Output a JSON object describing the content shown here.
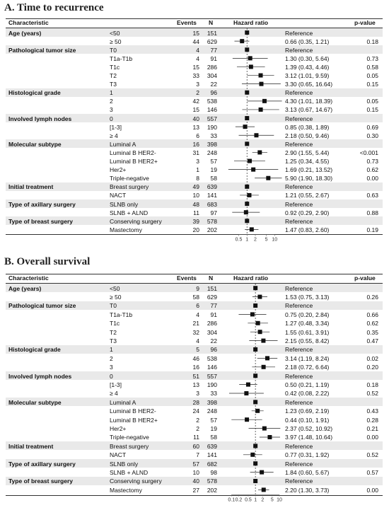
{
  "panels": [
    {
      "title": "A. Time to recurrence",
      "headers": {
        "characteristic": "Characteristic",
        "events": "Events",
        "n": "N",
        "hazard": "Hazard ratio",
        "pvalue": "p-value"
      },
      "axis_ticks": [
        "0.5",
        "1",
        "2",
        "5",
        "10"
      ],
      "rows": [
        {
          "char": "Age (years)",
          "level": "<50",
          "events": "15",
          "n": "151",
          "hr_text": "Reference",
          "p": ""
        },
        {
          "char": "",
          "level": "≥ 50",
          "events": "44",
          "n": "629",
          "hr_text": "0.66 (0.35, 1.21)",
          "p": "0.18"
        },
        {
          "char": "Pathological tumor size",
          "level": "T0",
          "events": "4",
          "n": "77",
          "hr_text": "Reference",
          "p": ""
        },
        {
          "char": "",
          "level": "T1a-T1b",
          "events": "4",
          "n": "91",
          "hr_text": "1.30 (0.30, 5.64)",
          "p": "0.73"
        },
        {
          "char": "",
          "level": "T1c",
          "events": "15",
          "n": "286",
          "hr_text": "1.39 (0.43, 4.46)",
          "p": "0.58"
        },
        {
          "char": "",
          "level": "T2",
          "events": "33",
          "n": "304",
          "hr_text": "3.12 (1.01, 9.59)",
          "p": "0.05"
        },
        {
          "char": "",
          "level": "T3",
          "events": "3",
          "n": "22",
          "hr_text": "3.30 (0.65, 16.64)",
          "p": "0.15"
        },
        {
          "char": "Histological grade",
          "level": "1",
          "events": "2",
          "n": "96",
          "hr_text": "Reference",
          "p": ""
        },
        {
          "char": "",
          "level": "2",
          "events": "42",
          "n": "538",
          "hr_text": "4.30 (1.01, 18.39)",
          "p": "0.05"
        },
        {
          "char": "",
          "level": "3",
          "events": "15",
          "n": "146",
          "hr_text": "3.13 (0.67, 14.67)",
          "p": "0.15"
        },
        {
          "char": "Involved lymph nodes",
          "level": "0",
          "events": "40",
          "n": "557",
          "hr_text": "Reference",
          "p": ""
        },
        {
          "char": "",
          "level": "[1-3]",
          "events": "13",
          "n": "190",
          "hr_text": "0.85 (0.38, 1.89)",
          "p": "0.69"
        },
        {
          "char": "",
          "level": "≥ 4",
          "events": "6",
          "n": "33",
          "hr_text": "2.18 (0.50, 9.46)",
          "p": "0.30"
        },
        {
          "char": "Molecular subtype",
          "level": "Luminal A",
          "events": "16",
          "n": "398",
          "hr_text": "Reference",
          "p": ""
        },
        {
          "char": "",
          "level": "Luminal B HER2-",
          "events": "31",
          "n": "248",
          "hr_text": "2.90 (1.55, 5.44)",
          "p": "<0.001"
        },
        {
          "char": "",
          "level": "Luminal B HER2+",
          "events": "3",
          "n": "57",
          "hr_text": "1.25 (0.34, 4.55)",
          "p": "0.73"
        },
        {
          "char": "",
          "level": "Her2+",
          "events": "1",
          "n": "19",
          "hr_text": "1.69 (0.21, 13.52)",
          "p": "0.62"
        },
        {
          "char": "",
          "level": "Triple-negative",
          "events": "8",
          "n": "58",
          "hr_text": "5.90 (1.90, 18.30)",
          "p": "0.00"
        },
        {
          "char": "Initial treatment",
          "level": "Breast surgery",
          "events": "49",
          "n": "639",
          "hr_text": "Reference",
          "p": ""
        },
        {
          "char": "",
          "level": "NACT",
          "events": "10",
          "n": "141",
          "hr_text": "1.21 (0.55, 2.67)",
          "p": "0.63"
        },
        {
          "char": "Type of axillary surgery",
          "level": "SLNB only",
          "events": "48",
          "n": "683",
          "hr_text": "Reference",
          "p": ""
        },
        {
          "char": "",
          "level": "SLNB + ALND",
          "events": "11",
          "n": "97",
          "hr_text": "0.92 (0.29, 2.90)",
          "p": "0.88"
        },
        {
          "char": "Type of breast surgery",
          "level": "Conserving surgery",
          "events": "39",
          "n": "578",
          "hr_text": "Reference",
          "p": ""
        },
        {
          "char": "",
          "level": "Mastectomy",
          "events": "20",
          "n": "202",
          "hr_text": "1.47 (0.83, 2.60)",
          "p": "0.19"
        }
      ]
    },
    {
      "title": "B. Overall survival",
      "headers": {
        "characteristic": "Characteristic",
        "events": "Events",
        "n": "N",
        "hazard": "Hazard ratio",
        "pvalue": "p-value"
      },
      "axis_ticks": [
        "0.1",
        "0.2",
        "0.5",
        "1",
        "2",
        "5",
        "10"
      ],
      "rows": [
        {
          "char": "Age (years)",
          "level": "<50",
          "events": "9",
          "n": "151",
          "hr_text": "Reference",
          "p": ""
        },
        {
          "char": "",
          "level": "≥ 50",
          "events": "58",
          "n": "629",
          "hr_text": "1.53 (0.75, 3.13)",
          "p": "0.26"
        },
        {
          "char": "Pathological tumor size",
          "level": "T0",
          "events": "6",
          "n": "77",
          "hr_text": "Reference",
          "p": ""
        },
        {
          "char": "",
          "level": "T1a-T1b",
          "events": "4",
          "n": "91",
          "hr_text": "0.75 (0.20, 2.84)",
          "p": "0.66"
        },
        {
          "char": "",
          "level": "T1c",
          "events": "21",
          "n": "286",
          "hr_text": "1.27 (0.48, 3.34)",
          "p": "0.62"
        },
        {
          "char": "",
          "level": "T2",
          "events": "32",
          "n": "304",
          "hr_text": "1.55 (0.61, 3.91)",
          "p": "0.35"
        },
        {
          "char": "",
          "level": "T3",
          "events": "4",
          "n": "22",
          "hr_text": "2.15 (0.55, 8.42)",
          "p": "0.47"
        },
        {
          "char": "Histological grade",
          "level": "1",
          "events": "5",
          "n": "96",
          "hr_text": "Reference",
          "p": ""
        },
        {
          "char": "",
          "level": "2",
          "events": "46",
          "n": "538",
          "hr_text": "3.14 (1.19, 8.24)",
          "p": "0.02"
        },
        {
          "char": "",
          "level": "3",
          "events": "16",
          "n": "146",
          "hr_text": "2.18 (0.72, 6.64)",
          "p": "0.20"
        },
        {
          "char": "Involved lymph nodes",
          "level": "0",
          "events": "51",
          "n": "557",
          "hr_text": "Reference",
          "p": ""
        },
        {
          "char": "",
          "level": "[1-3]",
          "events": "13",
          "n": "190",
          "hr_text": "0.50 (0.21, 1.19)",
          "p": "0.18"
        },
        {
          "char": "",
          "level": "≥ 4",
          "events": "3",
          "n": "33",
          "hr_text": "0.42 (0.08, 2.22)",
          "p": "0.52"
        },
        {
          "char": "Molecular subtype",
          "level": "Luminal A",
          "events": "28",
          "n": "398",
          "hr_text": "Reference",
          "p": ""
        },
        {
          "char": "",
          "level": "Luminal B HER2-",
          "events": "24",
          "n": "248",
          "hr_text": "1.23 (0.69, 2.19)",
          "p": "0.43"
        },
        {
          "char": "",
          "level": "Luminal B HER2+",
          "events": "2",
          "n": "57",
          "hr_text": "0.44 (0.10, 1.91)",
          "p": "0.28"
        },
        {
          "char": "",
          "level": "Her2+",
          "events": "2",
          "n": "19",
          "hr_text": "2.37 (0.52, 10.92)",
          "p": "0.21"
        },
        {
          "char": "",
          "level": "Triple-negative",
          "events": "11",
          "n": "58",
          "hr_text": "3.97 (1.48, 10.64)",
          "p": "0.00"
        },
        {
          "char": "Initial treatment",
          "level": "Breast surgery",
          "events": "60",
          "n": "639",
          "hr_text": "Reference",
          "p": ""
        },
        {
          "char": "",
          "level": "NACT",
          "events": "7",
          "n": "141",
          "hr_text": "0.77 (0.31, 1.92)",
          "p": "0.52"
        },
        {
          "char": "Type of axillary surgery",
          "level": "SLNB only",
          "events": "57",
          "n": "682",
          "hr_text": "Reference",
          "p": ""
        },
        {
          "char": "",
          "level": "SLNB + ALND",
          "events": "10",
          "n": "98",
          "hr_text": "1.84 (0.60, 5.67)",
          "p": "0.57"
        },
        {
          "char": "Type of breast surgery",
          "level": "Conserving surgery",
          "events": "40",
          "n": "578",
          "hr_text": "Reference",
          "p": ""
        },
        {
          "char": "",
          "level": "Mastectomy",
          "events": "27",
          "n": "202",
          "hr_text": "2.20 (1.30, 3.73)",
          "p": "0.00"
        }
      ]
    }
  ],
  "chart_data": [
    {
      "type": "forest",
      "title": "A. Time to recurrence",
      "xlabel": "Hazard ratio",
      "xscale": "log",
      "xlim": [
        0.2,
        20
      ],
      "ticks": [
        0.5,
        1,
        2,
        5,
        10
      ],
      "reference_line": 1,
      "points": [
        {
          "label": "≥ 50",
          "hr": 0.66,
          "lo": 0.35,
          "hi": 1.21
        },
        {
          "label": "T1a-T1b",
          "hr": 1.3,
          "lo": 0.3,
          "hi": 5.64
        },
        {
          "label": "T1c",
          "hr": 1.39,
          "lo": 0.43,
          "hi": 4.46
        },
        {
          "label": "T2",
          "hr": 3.12,
          "lo": 1.01,
          "hi": 9.59
        },
        {
          "label": "T3",
          "hr": 3.3,
          "lo": 0.65,
          "hi": 16.64
        },
        {
          "label": "2",
          "hr": 4.3,
          "lo": 1.01,
          "hi": 18.39
        },
        {
          "label": "3",
          "hr": 3.13,
          "lo": 0.67,
          "hi": 14.67
        },
        {
          "label": "[1-3]",
          "hr": 0.85,
          "lo": 0.38,
          "hi": 1.89
        },
        {
          "label": "≥ 4",
          "hr": 2.18,
          "lo": 0.5,
          "hi": 9.46
        },
        {
          "label": "Luminal B HER2-",
          "hr": 2.9,
          "lo": 1.55,
          "hi": 5.44
        },
        {
          "label": "Luminal B HER2+",
          "hr": 1.25,
          "lo": 0.34,
          "hi": 4.55
        },
        {
          "label": "Her2+",
          "hr": 1.69,
          "lo": 0.21,
          "hi": 13.52
        },
        {
          "label": "Triple-negative",
          "hr": 5.9,
          "lo": 1.9,
          "hi": 18.3
        },
        {
          "label": "NACT",
          "hr": 1.21,
          "lo": 0.55,
          "hi": 2.67
        },
        {
          "label": "SLNB + ALND",
          "hr": 0.92,
          "lo": 0.29,
          "hi": 2.9
        },
        {
          "label": "Mastectomy",
          "hr": 1.47,
          "lo": 0.83,
          "hi": 2.6
        }
      ]
    },
    {
      "type": "forest",
      "title": "B. Overall survival",
      "xlabel": "Hazard ratio",
      "xscale": "log",
      "xlim": [
        0.07,
        14
      ],
      "ticks": [
        0.1,
        0.2,
        0.5,
        1,
        2,
        5,
        10
      ],
      "reference_line": 1,
      "points": [
        {
          "label": "≥ 50",
          "hr": 1.53,
          "lo": 0.75,
          "hi": 3.13
        },
        {
          "label": "T1a-T1b",
          "hr": 0.75,
          "lo": 0.2,
          "hi": 2.84
        },
        {
          "label": "T1c",
          "hr": 1.27,
          "lo": 0.48,
          "hi": 3.34
        },
        {
          "label": "T2",
          "hr": 1.55,
          "lo": 0.61,
          "hi": 3.91
        },
        {
          "label": "T3",
          "hr": 2.15,
          "lo": 0.55,
          "hi": 8.42
        },
        {
          "label": "2",
          "hr": 3.14,
          "lo": 1.19,
          "hi": 8.24
        },
        {
          "label": "3",
          "hr": 2.18,
          "lo": 0.72,
          "hi": 6.64
        },
        {
          "label": "[1-3]",
          "hr": 0.5,
          "lo": 0.21,
          "hi": 1.19
        },
        {
          "label": "≥ 4",
          "hr": 0.42,
          "lo": 0.08,
          "hi": 2.22
        },
        {
          "label": "Luminal B HER2-",
          "hr": 1.23,
          "lo": 0.69,
          "hi": 2.19
        },
        {
          "label": "Luminal B HER2+",
          "hr": 0.44,
          "lo": 0.1,
          "hi": 1.91
        },
        {
          "label": "Her2+",
          "hr": 2.37,
          "lo": 0.52,
          "hi": 10.92
        },
        {
          "label": "Triple-negative",
          "hr": 3.97,
          "lo": 1.48,
          "hi": 10.64
        },
        {
          "label": "NACT",
          "hr": 0.77,
          "lo": 0.31,
          "hi": 1.92
        },
        {
          "label": "SLNB + ALND",
          "hr": 1.84,
          "lo": 0.6,
          "hi": 5.67
        },
        {
          "label": "Mastectomy",
          "hr": 2.2,
          "lo": 1.3,
          "hi": 3.73
        }
      ]
    }
  ]
}
